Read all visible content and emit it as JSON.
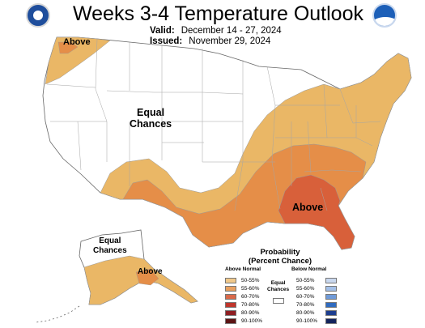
{
  "header": {
    "title": "Weeks 3-4 Temperature Outlook",
    "valid_label": "Valid:",
    "valid_value": "December 14 - 27, 2024",
    "issued_label": "Issued:",
    "issued_value": "November 29, 2024"
  },
  "logos": {
    "left": "commerce-seal-icon",
    "right": "noaa-logo-icon",
    "right_text": "NOAA"
  },
  "map": {
    "labels": {
      "above_northwest": "Above",
      "equal_chances_conus": "Equal\nChances",
      "above_southeast": "Above",
      "equal_chances_alaska": "Equal\nChances",
      "above_alaska": "Above"
    },
    "colors": {
      "equal_chances": "#ffffff",
      "above_50_55": "#eab766",
      "above_55_60": "#e58e48",
      "above_60_70": "#d8603a",
      "boundary": "#a5a5a5",
      "outline": "#666666"
    }
  },
  "legend": {
    "title": "Probability\n(Percent Chance)",
    "above_heading": "Above Normal",
    "below_heading": "Below Normal",
    "equal_label": "Equal\nChances",
    "above": [
      {
        "label": "50-55%",
        "color": "#f0c88a"
      },
      {
        "label": "55-60%",
        "color": "#e8a060"
      },
      {
        "label": "60-70%",
        "color": "#d9694a"
      },
      {
        "label": "70-80%",
        "color": "#c1352b"
      },
      {
        "label": "80-90%",
        "color": "#8f1e22"
      },
      {
        "label": "90-100%",
        "color": "#5c1414"
      }
    ],
    "below": [
      {
        "label": "50-55%",
        "color": "#c9d8ef"
      },
      {
        "label": "55-60%",
        "color": "#a4c0e8"
      },
      {
        "label": "60-70%",
        "color": "#6f9ad8"
      },
      {
        "label": "70-80%",
        "color": "#2f6bc0"
      },
      {
        "label": "80-90%",
        "color": "#1d3e8f"
      },
      {
        "label": "90-100%",
        "color": "#13245c"
      }
    ]
  }
}
